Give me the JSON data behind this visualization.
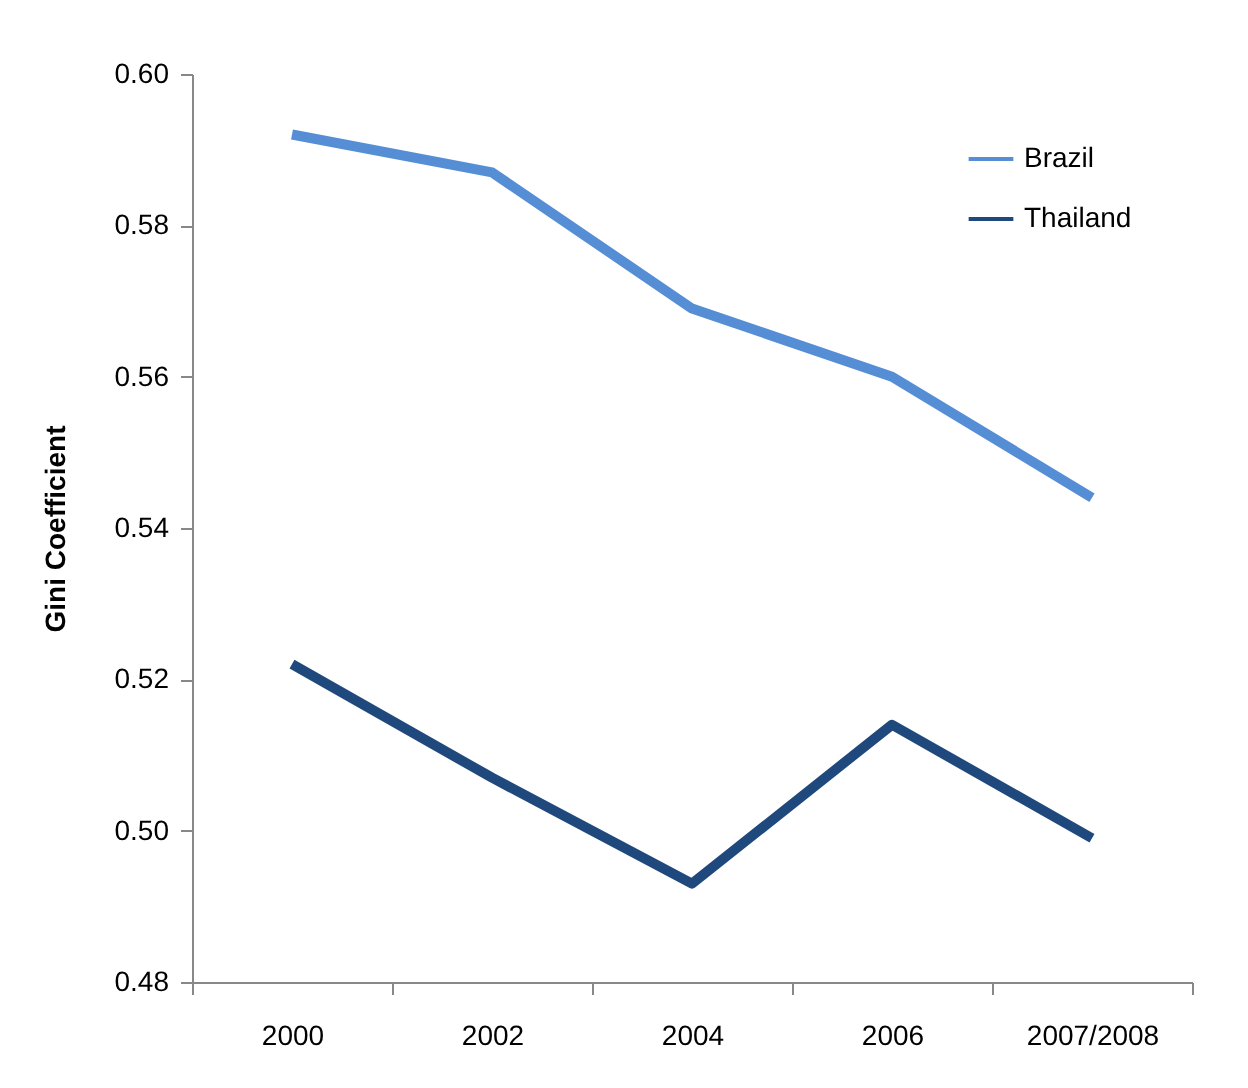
{
  "chart_data": {
    "type": "line",
    "ylabel": "Gini Coefficient",
    "categories": [
      "2000",
      "2002",
      "2004",
      "2006",
      "2007/2008"
    ],
    "series": [
      {
        "name": "Brazil",
        "color": "#558ed5",
        "values": [
          0.592,
          0.587,
          0.569,
          0.56,
          0.544
        ]
      },
      {
        "name": "Thailand",
        "color": "#1f497d",
        "values": [
          0.522,
          0.507,
          0.493,
          0.514,
          0.499
        ]
      }
    ],
    "ylim": [
      0.48,
      0.6
    ],
    "yticks": [
      0.48,
      {
        "value": 0.5,
        "label": "0.50"
      },
      0.52,
      0.54,
      0.56,
      0.58,
      {
        "value": 0.6,
        "label": "0.60"
      }
    ],
    "grid": false,
    "legend": "top right",
    "marker": "none",
    "line_style": "solid"
  }
}
